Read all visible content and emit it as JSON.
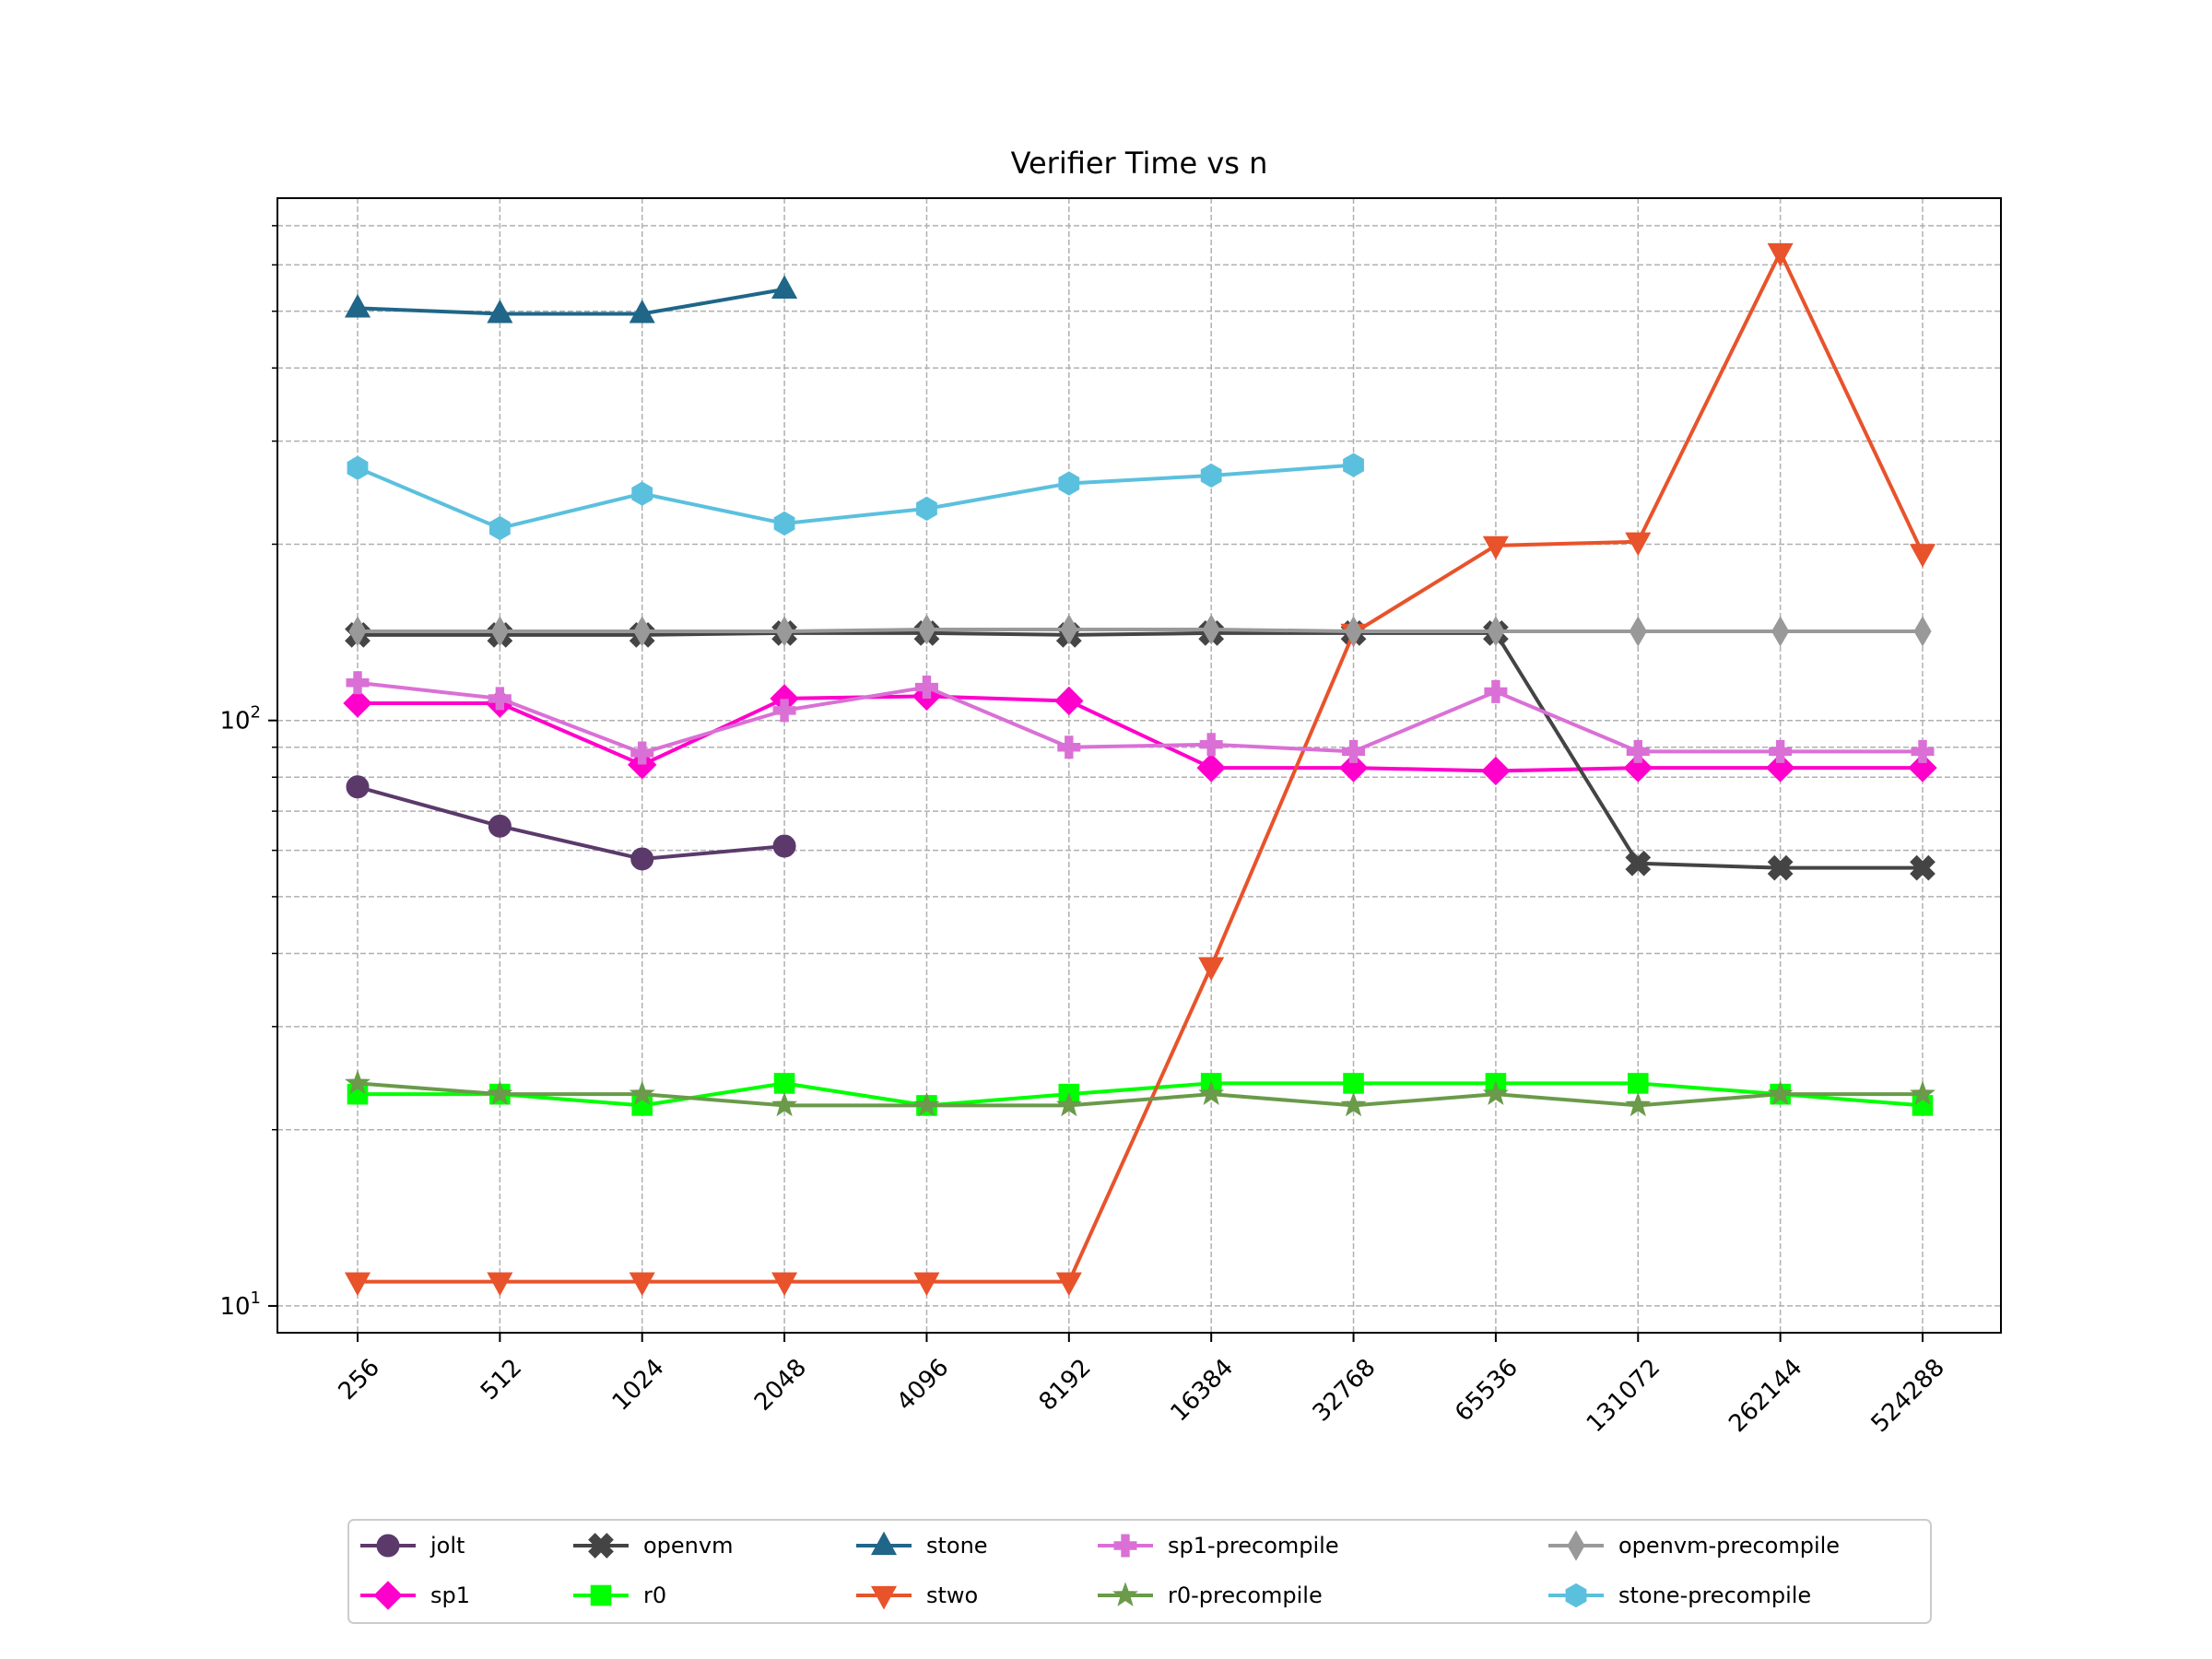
{
  "chart_data": {
    "type": "line",
    "title": "Verifier Time vs n",
    "xlabel": "",
    "ylabel": "",
    "yscale": "log",
    "ylim": [
      9,
      780
    ],
    "y_tick_labels": [
      {
        "value": 10,
        "base": "10",
        "exp": "1"
      },
      {
        "value": 100,
        "base": "10",
        "exp": "2"
      }
    ],
    "grid": true,
    "legend_placement": "bottom-center",
    "categories": [
      "256",
      "512",
      "1024",
      "2048",
      "4096",
      "8192",
      "16384",
      "32768",
      "65536",
      "131072",
      "262144",
      "524288"
    ],
    "series": [
      {
        "name": "jolt",
        "color": "#5b3a6b",
        "marker": "circle",
        "values": [
          77,
          66,
          58,
          61,
          null,
          null,
          null,
          null,
          null,
          null,
          null,
          null
        ]
      },
      {
        "name": "sp1",
        "color": "#ff00cc",
        "marker": "diamond",
        "values": [
          107,
          107,
          84,
          109,
          110,
          108,
          83,
          83,
          82,
          83,
          83,
          83
        ]
      },
      {
        "name": "openvm",
        "color": "#444444",
        "marker": "x-filled",
        "values": [
          140,
          140,
          140,
          141,
          141,
          140,
          141,
          141,
          141,
          57,
          56,
          56
        ]
      },
      {
        "name": "r0",
        "color": "#00ff00",
        "marker": "square",
        "values": [
          23,
          23,
          22,
          24,
          22,
          23,
          24,
          24,
          24,
          24,
          23,
          22
        ]
      },
      {
        "name": "stone",
        "color": "#1f6688",
        "marker": "triangle-up",
        "values": [
          506,
          495,
          495,
          545,
          null,
          null,
          null,
          null,
          null,
          null,
          null,
          null
        ]
      },
      {
        "name": "stwo",
        "color": "#e8532b",
        "marker": "triangle-down",
        "values": [
          11,
          11,
          11,
          11,
          11,
          11,
          38,
          141,
          199,
          202,
          630,
          193
        ]
      },
      {
        "name": "sp1-precompile",
        "color": "#da70d6",
        "marker": "plus-filled",
        "values": [
          116,
          109,
          88,
          104,
          114,
          90,
          91,
          88.5,
          112,
          88.5,
          88.5,
          88.5
        ]
      },
      {
        "name": "r0-precompile",
        "color": "#6a9a4a",
        "marker": "star",
        "values": [
          24,
          23,
          23,
          22,
          22,
          22,
          23,
          22,
          23,
          22,
          23,
          23
        ]
      },
      {
        "name": "openvm-precompile",
        "color": "#999999",
        "marker": "thin-diamond",
        "values": [
          142,
          142,
          142,
          142,
          143,
          143,
          143,
          142,
          142,
          142,
          142,
          142
        ]
      },
      {
        "name": "stone-precompile",
        "color": "#5bc0de",
        "marker": "hexagon",
        "values": [
          270,
          213,
          244,
          217,
          230,
          254,
          262,
          273,
          null,
          null,
          null,
          null
        ]
      }
    ]
  }
}
